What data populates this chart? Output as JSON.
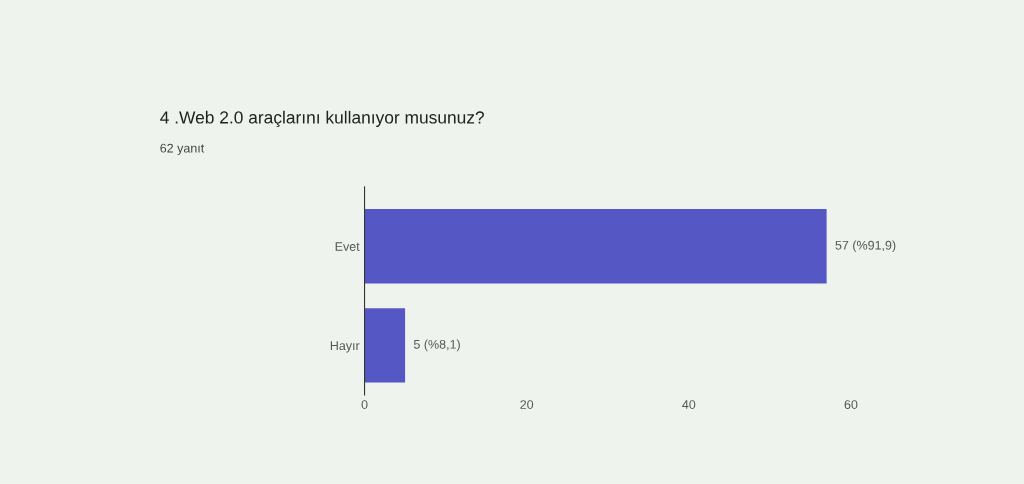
{
  "chart_data": {
    "type": "bar",
    "orientation": "horizontal",
    "title": "4 .Web 2.0 araçlarını kullanıyor musunuz?",
    "subtitle": "62 yanıt",
    "categories": [
      "Evet",
      "Hayır"
    ],
    "values": [
      57,
      5
    ],
    "value_labels": [
      "57 (%91,9)",
      "5 (%8,1)"
    ],
    "color": "#5558c4",
    "xlim": [
      0,
      60
    ],
    "xticks": [
      0,
      20,
      40,
      60
    ]
  }
}
